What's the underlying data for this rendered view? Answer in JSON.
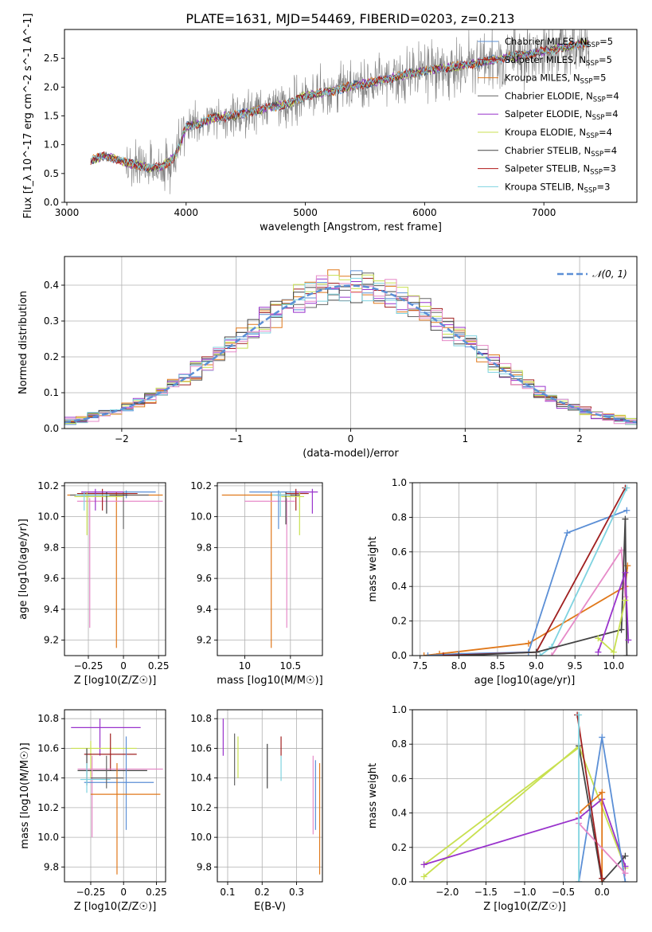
{
  "figure_title": "PLATE=1631, MJD=54469, FIBERID=0203, z=0.213",
  "colors": {
    "chabrier_miles": "#5b8fd6",
    "salpeter_miles": "#a02020",
    "kroupa_miles": "#e0781a",
    "chabrier_elodie": "#666666",
    "salpeter_elodie": "#9933cc",
    "kroupa_elodie": "#c8e050",
    "chabrier_stelib": "#444444",
    "salpeter_stelib": "#b01818",
    "kroupa_stelib": "#7fd3e0",
    "pink": "#e68ac8",
    "data": "#808080",
    "normal": "#5b8fd6"
  },
  "chart_data": [
    {
      "id": "spectrum",
      "type": "line",
      "xlabel": "wavelength [Angstrom, rest frame]",
      "ylabel": "Flux [f_λ 10^-17 erg cm^-2 s^-1 A^-1]",
      "xlim": [
        2980,
        7780
      ],
      "ylim": [
        0,
        3.0
      ],
      "xticks": [
        3000,
        4000,
        5000,
        6000,
        7000
      ],
      "yticks": [
        0.0,
        0.5,
        1.0,
        1.5,
        2.0,
        2.5
      ],
      "legend_position": "top-right",
      "grid": false,
      "x_start": 3200,
      "x_end": 7380,
      "spectrum_anchors": {
        "x": [
          3200,
          3300,
          3400,
          3500,
          3600,
          3700,
          3800,
          3900,
          3950,
          4000,
          4100,
          4200,
          4300,
          4400,
          4500,
          4600,
          4700,
          4800,
          4900,
          5000,
          5200,
          5400,
          5600,
          5800,
          6000,
          6200,
          6400,
          6600,
          6800,
          7000,
          7200,
          7380
        ],
        "y": [
          0.72,
          0.8,
          0.77,
          0.68,
          0.65,
          0.6,
          0.62,
          0.78,
          1.0,
          1.32,
          1.35,
          1.45,
          1.48,
          1.5,
          1.55,
          1.6,
          1.65,
          1.68,
          1.75,
          1.85,
          1.92,
          2.02,
          2.1,
          2.2,
          2.28,
          2.34,
          2.4,
          2.48,
          2.55,
          2.62,
          2.7,
          2.78
        ]
      },
      "series": [
        {
          "name": "Chabrier MILES, N_SSP=5",
          "label_main": "Chabrier MILES, N",
          "label_sub": "SSP",
          "label_tail": "=5",
          "color_key": "chabrier_miles"
        },
        {
          "name": "Salpeter MILES, N_SSP=5",
          "label_main": "Salpeter MILES, N",
          "label_sub": "SSP",
          "label_tail": "=5",
          "color_key": "salpeter_miles"
        },
        {
          "name": "Kroupa MILES, N_SSP=5",
          "label_main": "Kroupa MILES, N",
          "label_sub": "SSP",
          "label_tail": "=5",
          "color_key": "kroupa_miles"
        },
        {
          "name": "Chabrier ELODIE, N_SSP=4",
          "label_main": "Chabrier ELODIE, N",
          "label_sub": "SSP",
          "label_tail": "=4",
          "color_key": "chabrier_elodie"
        },
        {
          "name": "Salpeter ELODIE, N_SSP=4",
          "label_main": "Salpeter ELODIE, N",
          "label_sub": "SSP",
          "label_tail": "=4",
          "color_key": "salpeter_elodie"
        },
        {
          "name": "Kroupa ELODIE, N_SSP=4",
          "label_main": "Kroupa ELODIE, N",
          "label_sub": "SSP",
          "label_tail": "=4",
          "color_key": "kroupa_elodie"
        },
        {
          "name": "Chabrier STELIB, N_SSP=4",
          "label_main": "Chabrier STELIB, N",
          "label_sub": "SSP",
          "label_tail": "=4",
          "color_key": "chabrier_stelib"
        },
        {
          "name": "Salpeter STELIB, N_SSP=3",
          "label_main": "Salpeter STELIB, N",
          "label_sub": "SSP",
          "label_tail": "=3",
          "color_key": "salpeter_stelib"
        },
        {
          "name": "Kroupa STELIB, N_SSP=3",
          "label_main": "Kroupa STELIB, N",
          "label_sub": "SSP",
          "label_tail": "=3",
          "color_key": "kroupa_stelib"
        }
      ]
    },
    {
      "id": "residuals",
      "type": "histogram",
      "xlabel": "(data-model)/error",
      "ylabel": "Normed distribution",
      "xlim": [
        -2.5,
        2.5
      ],
      "ylim": [
        0,
        0.48
      ],
      "xticks": [
        -2,
        -1,
        0,
        1,
        2
      ],
      "yticks": [
        0.0,
        0.1,
        0.2,
        0.3,
        0.4
      ],
      "grid": true,
      "legend_position": "top-right",
      "normal_label": "𝒩(0, 1)",
      "bin_width": 0.1
    },
    {
      "id": "age_vs_Z",
      "type": "errorbar",
      "xlabel": "Z [log10(Z/Z☉)]",
      "ylabel": "age  [log10(age/yr)]",
      "xlim": [
        -0.42,
        0.3
      ],
      "ylim": [
        9.1,
        10.22
      ],
      "xticks": [
        -0.25,
        0.0,
        0.25
      ],
      "yticks": [
        9.2,
        9.4,
        9.6,
        9.8,
        10.0,
        10.2
      ],
      "grid": true,
      "points": [
        {
          "c": "chabrier_miles",
          "x": 0.02,
          "y": 10.16,
          "xl": -0.3,
          "xh": 0.23,
          "yl": 10.12,
          "yh": 10.17
        },
        {
          "c": "kroupa_miles",
          "x": -0.05,
          "y": 10.14,
          "xl": -0.4,
          "xh": 0.28,
          "yl": 9.15,
          "yh": 10.16
        },
        {
          "c": "pink",
          "x": -0.24,
          "y": 10.1,
          "xl": -0.33,
          "xh": 0.28,
          "yl": 9.28,
          "yh": 10.12
        },
        {
          "c": "chabrier_elodie",
          "x": 0.0,
          "y": 10.14,
          "xl": -0.38,
          "xh": 0.18,
          "yl": 9.92,
          "yh": 10.16
        },
        {
          "c": "salpeter_miles",
          "x": -0.15,
          "y": 10.15,
          "xl": -0.33,
          "xh": 0.1,
          "yl": 10.04,
          "yh": 10.18
        },
        {
          "c": "salpeter_elodie",
          "x": -0.2,
          "y": 10.16,
          "xl": -0.3,
          "xh": 0.0,
          "yl": 10.04,
          "yh": 10.18
        },
        {
          "c": "kroupa_elodie",
          "x": -0.26,
          "y": 10.13,
          "xl": -0.35,
          "xh": 0.0,
          "yl": 9.88,
          "yh": 10.16
        },
        {
          "c": "chabrier_stelib",
          "x": -0.12,
          "y": 10.14,
          "xl": -0.3,
          "xh": 0.03,
          "yl": 10.02,
          "yh": 10.16
        },
        {
          "c": "kroupa_stelib",
          "x": -0.28,
          "y": 10.14,
          "xl": -0.34,
          "xh": -0.1,
          "yl": 10.04,
          "yh": 10.16
        }
      ]
    },
    {
      "id": "age_vs_mass",
      "type": "errorbar",
      "xlabel": "mass [log10(M/M☉)]",
      "ylabel": "",
      "xlim": [
        9.7,
        10.85
      ],
      "ylim": [
        9.1,
        10.22
      ],
      "xticks": [
        10.0,
        10.5
      ],
      "yticks": [
        9.2,
        9.4,
        9.6,
        9.8,
        10.0,
        10.2
      ],
      "grid": true,
      "points": [
        {
          "c": "kroupa_miles",
          "x": 10.29,
          "y": 10.14,
          "xl": 9.75,
          "xh": 10.52,
          "yl": 9.15,
          "yh": 10.16
        },
        {
          "c": "pink",
          "x": 10.46,
          "y": 10.1,
          "xl": 10.0,
          "xh": 10.55,
          "yl": 9.28,
          "yh": 10.12
        },
        {
          "c": "chabrier_miles",
          "x": 10.37,
          "y": 10.16,
          "xl": 10.05,
          "xh": 10.68,
          "yl": 9.92,
          "yh": 10.17
        },
        {
          "c": "salpeter_elodie",
          "x": 10.74,
          "y": 10.16,
          "xl": 10.55,
          "xh": 10.8,
          "yl": 10.02,
          "yh": 10.18
        },
        {
          "c": "salpeter_miles",
          "x": 10.56,
          "y": 10.15,
          "xl": 10.45,
          "xh": 10.7,
          "yl": 10.04,
          "yh": 10.18
        },
        {
          "c": "kroupa_elodie",
          "x": 10.6,
          "y": 10.13,
          "xl": 10.4,
          "xh": 10.65,
          "yl": 9.88,
          "yh": 10.16
        },
        {
          "c": "chabrier_stelib",
          "x": 10.45,
          "y": 10.14,
          "xl": 10.35,
          "xh": 10.6,
          "yl": 9.95,
          "yh": 10.16
        },
        {
          "c": "kroupa_stelib",
          "x": 10.39,
          "y": 10.14,
          "xl": 10.3,
          "xh": 10.5,
          "yl": 10.0,
          "yh": 10.16
        }
      ]
    },
    {
      "id": "weight_vs_age",
      "type": "line",
      "xlabel": "age  [log10(age/yr)]",
      "ylabel": "mass weight",
      "xlim": [
        7.4,
        10.3
      ],
      "ylim": [
        0,
        1.0
      ],
      "xticks": [
        7.5,
        8.0,
        8.5,
        9.0,
        9.5,
        10.0
      ],
      "yticks": [
        0.0,
        0.2,
        0.4,
        0.6,
        0.8,
        1.0
      ],
      "grid": true,
      "series": [
        {
          "c": "kroupa_miles",
          "x": [
            7.55,
            7.75,
            8.9,
            10.15,
            10.18
          ],
          "y": [
            0.0,
            0.01,
            0.07,
            0.4,
            0.52
          ]
        },
        {
          "c": "chabrier_miles",
          "x": [
            7.6,
            8.0,
            8.9,
            9.4,
            10.17
          ],
          "y": [
            0.0,
            0.01,
            0.02,
            0.71,
            0.84
          ]
        },
        {
          "c": "salpeter_miles",
          "x": [
            7.8,
            9.0,
            10.15
          ],
          "y": [
            0.0,
            0.02,
            0.97
          ]
        },
        {
          "c": "kroupa_stelib",
          "x": [
            9.05,
            9.2,
            10.17
          ],
          "y": [
            0.0,
            0.05,
            0.97
          ]
        },
        {
          "c": "pink",
          "x": [
            9.2,
            10.1,
            10.15
          ],
          "y": [
            0.0,
            0.61,
            0.34
          ]
        },
        {
          "c": "chabrier_stelib",
          "x": [
            8.0,
            9.0,
            10.1,
            10.15,
            10.17
          ],
          "y": [
            0.0,
            0.02,
            0.15,
            0.79,
            0.0
          ]
        },
        {
          "c": "salpeter_elodie",
          "x": [
            9.8,
            10.15,
            10.19
          ],
          "y": [
            0.02,
            0.48,
            0.09
          ]
        },
        {
          "c": "kroupa_elodie",
          "x": [
            9.8,
            10.0,
            10.15
          ],
          "y": [
            0.1,
            0.02,
            0.32
          ]
        }
      ]
    },
    {
      "id": "mass_vs_Z",
      "type": "errorbar",
      "xlabel": "Z [log10(Z/Z☉)]",
      "ylabel": "mass [log10(M/M☉)]",
      "xlim": [
        -0.45,
        0.32
      ],
      "ylim": [
        9.7,
        10.86
      ],
      "xticks": [
        -0.25,
        0.0,
        0.25
      ],
      "yticks": [
        9.8,
        10.0,
        10.2,
        10.4,
        10.6,
        10.8
      ],
      "grid": true,
      "points": [
        {
          "c": "salpeter_elodie",
          "x": -0.18,
          "y": 10.74,
          "xl": -0.4,
          "xh": 0.13,
          "yl": 10.55,
          "yh": 10.8
        },
        {
          "c": "kroupa_elodie",
          "x": -0.25,
          "y": 10.6,
          "xl": -0.4,
          "xh": 0.1,
          "yl": 10.4,
          "yh": 10.65
        },
        {
          "c": "salpeter_miles",
          "x": -0.1,
          "y": 10.56,
          "xl": -0.3,
          "xh": 0.1,
          "yl": 10.45,
          "yh": 10.7
        },
        {
          "c": "chabrier_stelib",
          "x": -0.28,
          "y": 10.45,
          "xl": -0.35,
          "xh": 0.18,
          "yl": 10.35,
          "yh": 10.6
        },
        {
          "c": "pink",
          "x": -0.24,
          "y": 10.46,
          "xl": -0.35,
          "xh": 0.3,
          "yl": 10.0,
          "yh": 10.55
        },
        {
          "c": "chabrier_miles",
          "x": 0.02,
          "y": 10.37,
          "xl": -0.3,
          "xh": 0.23,
          "yl": 10.05,
          "yh": 10.68
        },
        {
          "c": "kroupa_miles",
          "x": -0.05,
          "y": 10.29,
          "xl": -0.25,
          "xh": 0.28,
          "yl": 9.75,
          "yh": 10.5
        },
        {
          "c": "kroupa_stelib",
          "x": -0.28,
          "y": 10.39,
          "xl": -0.33,
          "xh": -0.1,
          "yl": 10.3,
          "yh": 10.5
        },
        {
          "c": "chabrier_elodie",
          "x": -0.13,
          "y": 10.4,
          "xl": -0.25,
          "xh": 0.0,
          "yl": 10.33,
          "yh": 10.55
        }
      ]
    },
    {
      "id": "mass_vs_ebv",
      "type": "errorbar",
      "xlabel": "E(B-V)",
      "ylabel": "",
      "xlim": [
        0.07,
        0.375
      ],
      "ylim": [
        9.7,
        10.86
      ],
      "xticks": [
        0.1,
        0.2,
        0.3
      ],
      "yticks": [
        9.8,
        10.0,
        10.2,
        10.4,
        10.6,
        10.8
      ],
      "grid": true,
      "points": [
        {
          "c": "salpeter_elodie",
          "x": 0.087,
          "y": 10.74,
          "yl": 10.55,
          "yh": 10.8
        },
        {
          "c": "chabrier_elodie",
          "x": 0.12,
          "y": 10.6,
          "yl": 10.35,
          "yh": 10.7
        },
        {
          "c": "kroupa_elodie",
          "x": 0.13,
          "y": 10.6,
          "yl": 10.4,
          "yh": 10.68
        },
        {
          "c": "chabrier_stelib",
          "x": 0.215,
          "y": 10.5,
          "yl": 10.33,
          "yh": 10.63
        },
        {
          "c": "salpeter_miles",
          "x": 0.255,
          "y": 10.62,
          "yl": 10.55,
          "yh": 10.68
        },
        {
          "c": "kroupa_stelib",
          "x": 0.255,
          "y": 10.45,
          "yl": 10.38,
          "yh": 10.55
        },
        {
          "c": "pink",
          "x": 0.348,
          "y": 10.46,
          "yl": 10.02,
          "yh": 10.55
        },
        {
          "c": "chabrier_miles",
          "x": 0.355,
          "y": 10.37,
          "yl": 10.05,
          "yh": 10.52
        },
        {
          "c": "kroupa_miles",
          "x": 0.367,
          "y": 10.29,
          "yl": 9.75,
          "yh": 10.5
        }
      ]
    },
    {
      "id": "weight_vs_Z",
      "type": "line",
      "xlabel": "Z [log10(Z/Z☉)]",
      "ylabel": "mass weight",
      "xlim": [
        -2.45,
        0.45
      ],
      "ylim": [
        0,
        1.0
      ],
      "xticks": [
        -2.0,
        -1.5,
        -1.0,
        -0.5,
        0.0
      ],
      "yticks": [
        0.0,
        0.2,
        0.4,
        0.6,
        0.8,
        1.0
      ],
      "grid": true,
      "series": [
        {
          "c": "kroupa_elodie",
          "x": [
            -2.3,
            -0.3,
            0.3
          ],
          "y": [
            0.03,
            0.79,
            0.08
          ]
        },
        {
          "c": "kroupa_elodie",
          "x": [
            -2.3,
            -0.3
          ],
          "y": [
            0.1,
            0.78
          ]
        },
        {
          "c": "salpeter_elodie",
          "x": [
            -2.3,
            -0.3,
            0.0,
            0.3
          ],
          "y": [
            0.1,
            0.37,
            0.48,
            0.09
          ]
        },
        {
          "c": "chabrier_stelib",
          "x": [
            -0.3,
            0.0,
            0.3
          ],
          "y": [
            0.79,
            0.0,
            0.15
          ]
        },
        {
          "c": "chabrier_miles",
          "x": [
            -0.3,
            0.0,
            0.3
          ],
          "y": [
            0.0,
            0.84,
            0.0
          ]
        },
        {
          "c": "kroupa_miles",
          "x": [
            -0.3,
            0.0,
            0.0
          ],
          "y": [
            0.4,
            0.52,
            0.0
          ]
        },
        {
          "c": "pink",
          "x": [
            -0.3,
            0.3
          ],
          "y": [
            0.34,
            0.05
          ]
        },
        {
          "c": "salpeter_miles",
          "x": [
            -0.32,
            0.0
          ],
          "y": [
            0.97,
            0.02
          ]
        },
        {
          "c": "kroupa_stelib",
          "x": [
            -0.3,
            -0.3
          ],
          "y": [
            0.0,
            0.97
          ]
        }
      ]
    }
  ]
}
